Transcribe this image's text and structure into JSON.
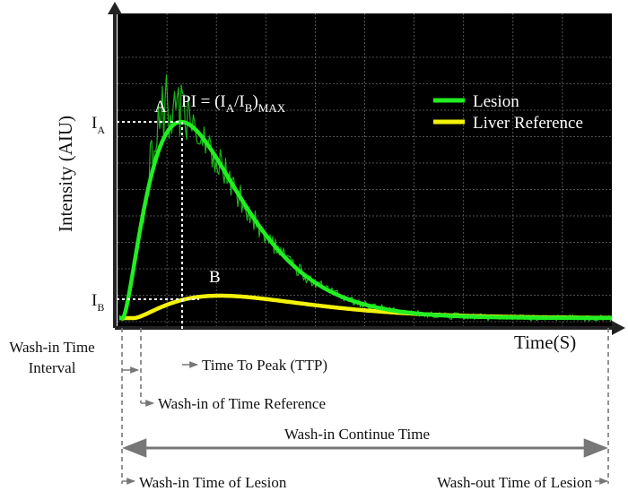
{
  "chart_data": {
    "type": "line",
    "title": "",
    "xlabel": "Time(S)",
    "ylabel": "Intensity (AIU)",
    "grid": true,
    "legend_position": "top-right",
    "series": [
      {
        "name": "Lesion",
        "color": "#22ee22",
        "peak_label": "A",
        "level_label": "A"
      },
      {
        "name": "Liver Reference",
        "color": "#f2f20a",
        "peak_label": "B",
        "level_label": "B"
      }
    ],
    "annotations": {
      "pi_formula": {
        "prefix": "PI = (I",
        "sub_a": "A",
        "mid": "/I",
        "sub_b": "B",
        "close": ")",
        "sub_max": "MAX"
      },
      "level_symbol": "I",
      "wash_in_time_interval": [
        "Wash-in Time",
        "Interval"
      ],
      "time_to_peak": "Time To Peak (TTP)",
      "wash_in_time_reference": "Wash-in of Time Reference",
      "wash_in_continue_time": "Wash-in Continue Time",
      "wash_in_time_lesion": "Wash-in Time of Lesion",
      "wash_out_time_lesion": "Wash-out Time of Lesion"
    }
  }
}
